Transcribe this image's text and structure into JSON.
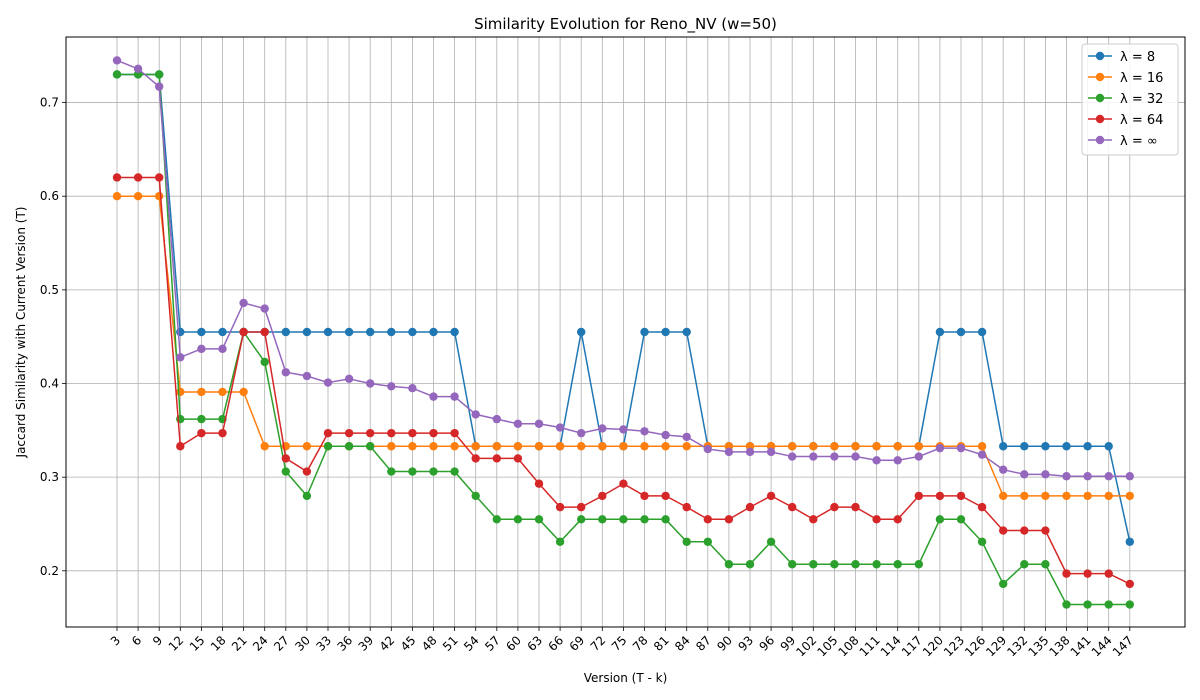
{
  "chart_data": {
    "type": "line",
    "title": "Similarity Evolution for Reno_NV (w=50)",
    "xlabel": "Version (T - k)",
    "ylabel": "Jaccard Similarity with Current Version (T)",
    "ylim": [
      0.14,
      0.77
    ],
    "yticks": [
      0.2,
      0.3,
      0.4,
      0.5,
      0.6,
      0.7
    ],
    "grid": true,
    "legend_position": "top-right",
    "categories": [
      "3",
      "6",
      "9",
      "12",
      "15",
      "18",
      "21",
      "24",
      "27",
      "30",
      "33",
      "36",
      "39",
      "42",
      "45",
      "48",
      "51",
      "54",
      "57",
      "60",
      "63",
      "66",
      "69",
      "72",
      "75",
      "78",
      "81",
      "84",
      "87",
      "90",
      "93",
      "96",
      "99",
      "102",
      "105",
      "108",
      "111",
      "114",
      "117",
      "120",
      "123",
      "126",
      "129",
      "132",
      "135",
      "138",
      "141",
      "144",
      "147"
    ],
    "series": [
      {
        "name": "λ = 8",
        "color": "#1f77b4",
        "values": [
          0.73,
          0.73,
          0.73,
          0.455,
          0.455,
          0.455,
          0.455,
          0.455,
          0.455,
          0.455,
          0.455,
          0.455,
          0.455,
          0.455,
          0.455,
          0.455,
          0.455,
          0.333,
          0.333,
          0.333,
          0.333,
          0.333,
          0.455,
          0.333,
          0.333,
          0.455,
          0.455,
          0.455,
          0.333,
          0.333,
          0.333,
          0.333,
          0.333,
          0.333,
          0.333,
          0.333,
          0.333,
          0.333,
          0.333,
          0.455,
          0.455,
          0.455,
          0.333,
          0.333,
          0.333,
          0.333,
          0.333,
          0.333,
          0.231
        ]
      },
      {
        "name": "λ = 16",
        "color": "#ff7f0e",
        "values": [
          0.6,
          0.6,
          0.6,
          0.391,
          0.391,
          0.391,
          0.391,
          0.333,
          0.333,
          0.333,
          0.333,
          0.333,
          0.333,
          0.333,
          0.333,
          0.333,
          0.333,
          0.333,
          0.333,
          0.333,
          0.333,
          0.333,
          0.333,
          0.333,
          0.333,
          0.333,
          0.333,
          0.333,
          0.333,
          0.333,
          0.333,
          0.333,
          0.333,
          0.333,
          0.333,
          0.333,
          0.333,
          0.333,
          0.333,
          0.333,
          0.333,
          0.333,
          0.28,
          0.28,
          0.28,
          0.28,
          0.28,
          0.28,
          0.28
        ]
      },
      {
        "name": "λ = 32",
        "color": "#2ca02c",
        "values": [
          0.73,
          0.73,
          0.73,
          0.362,
          0.362,
          0.362,
          0.455,
          0.423,
          0.306,
          0.28,
          0.333,
          0.333,
          0.333,
          0.306,
          0.306,
          0.306,
          0.306,
          0.28,
          0.255,
          0.255,
          0.255,
          0.231,
          0.255,
          0.255,
          0.255,
          0.255,
          0.255,
          0.231,
          0.231,
          0.207,
          0.207,
          0.231,
          0.207,
          0.207,
          0.207,
          0.207,
          0.207,
          0.207,
          0.207,
          0.255,
          0.255,
          0.231,
          0.186,
          0.207,
          0.207,
          0.164,
          0.164,
          0.164,
          0.164
        ]
      },
      {
        "name": "λ = 64",
        "color": "#d62728",
        "values": [
          0.62,
          0.62,
          0.62,
          0.333,
          0.347,
          0.347,
          0.455,
          0.455,
          0.32,
          0.306,
          0.347,
          0.347,
          0.347,
          0.347,
          0.347,
          0.347,
          0.347,
          0.32,
          0.32,
          0.32,
          0.293,
          0.268,
          0.268,
          0.28,
          0.293,
          0.28,
          0.28,
          0.268,
          0.255,
          0.255,
          0.268,
          0.28,
          0.268,
          0.255,
          0.268,
          0.268,
          0.255,
          0.255,
          0.28,
          0.28,
          0.28,
          0.268,
          0.243,
          0.243,
          0.243,
          0.197,
          0.197,
          0.197,
          0.186
        ]
      },
      {
        "name": "λ = ∞",
        "color": "#9467bd",
        "values": [
          0.745,
          0.736,
          0.717,
          0.428,
          0.437,
          0.437,
          0.486,
          0.48,
          0.412,
          0.408,
          0.401,
          0.405,
          0.4,
          0.397,
          0.395,
          0.386,
          0.386,
          0.367,
          0.362,
          0.357,
          0.357,
          0.353,
          0.347,
          0.352,
          0.351,
          0.349,
          0.345,
          0.343,
          0.33,
          0.327,
          0.327,
          0.327,
          0.322,
          0.322,
          0.322,
          0.322,
          0.318,
          0.318,
          0.322,
          0.331,
          0.331,
          0.324,
          0.308,
          0.303,
          0.303,
          0.301,
          0.301,
          0.301,
          0.301
        ]
      }
    ]
  }
}
